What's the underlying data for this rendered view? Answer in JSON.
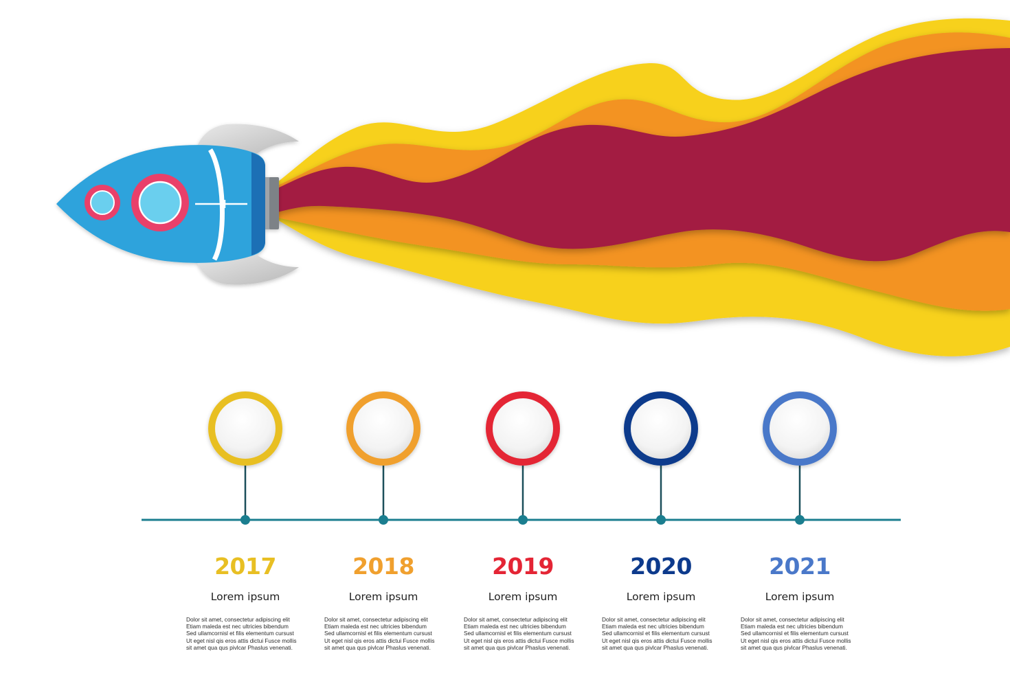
{
  "palette": {
    "flame_outer": "#F7D11E",
    "flame_middle": "#F39320",
    "flame_inner": "#A31B42",
    "rocket_body": "#2EA3DC",
    "rocket_window_ring": "#E9406A",
    "rocket_window_glass": "#6BCFEE",
    "rocket_fin": "#CDCDCD",
    "timeline_line": "#1B7E8F"
  },
  "milestones": [
    {
      "year": "2017",
      "title": "Lorem ipsum",
      "color": "#E8BF23",
      "body": [
        "Dolor sit amet, consectetur adipiscing elit",
        "Etiam maleda est nec ultricies bibendum",
        "Sed ullamcornisl et filis elementum cursust",
        "Ut eget nisl qis eros attis dictui Fusce mollis",
        "sit amet qua qus pivlcar Phaslus venenati."
      ]
    },
    {
      "year": "2018",
      "title": "Lorem ipsum",
      "color": "#F0A02E",
      "body": [
        "Dolor sit amet, consectetur adipiscing elit",
        "Etiam maleda est nec ultricies bibendum",
        "Sed ullamcornisl et filis elementum cursust",
        "Ut eget nisl qis eros attis dictui Fusce mollis",
        "sit amet qua qus pivlcar Phaslus venenati."
      ]
    },
    {
      "year": "2019",
      "title": "Lorem ipsum",
      "color": "#E42535",
      "body": [
        "Dolor sit amet, consectetur adipiscing elit",
        "Etiam maleda est nec ultricies bibendum",
        "Sed ullamcornisl et filis elementum cursust",
        "Ut eget nisl qis eros attis dictui Fusce mollis",
        "sit amet qua qus pivlcar Phaslus venenati."
      ]
    },
    {
      "year": "2020",
      "title": "Lorem ipsum",
      "color": "#0D3A8C",
      "body": [
        "Dolor sit amet, consectetur adipiscing elit",
        "Etiam maleda est nec ultricies bibendum",
        "Sed ullamcornisl et filis elementum cursust",
        "Ut eget nisl qis eros attis dictui Fusce mollis",
        "sit amet qua qus pivlcar Phaslus venenati."
      ]
    },
    {
      "year": "2021",
      "title": "Lorem ipsum",
      "color": "#4A78C9",
      "body": [
        "Dolor sit amet, consectetur adipiscing elit",
        "Etiam maleda est nec ultricies bibendum",
        "Sed ullamcornisl et filis elementum cursust",
        "Ut eget nisl qis eros attis dictui Fusce mollis",
        "sit amet qua qus pivlcar Phaslus venenati."
      ]
    }
  ]
}
